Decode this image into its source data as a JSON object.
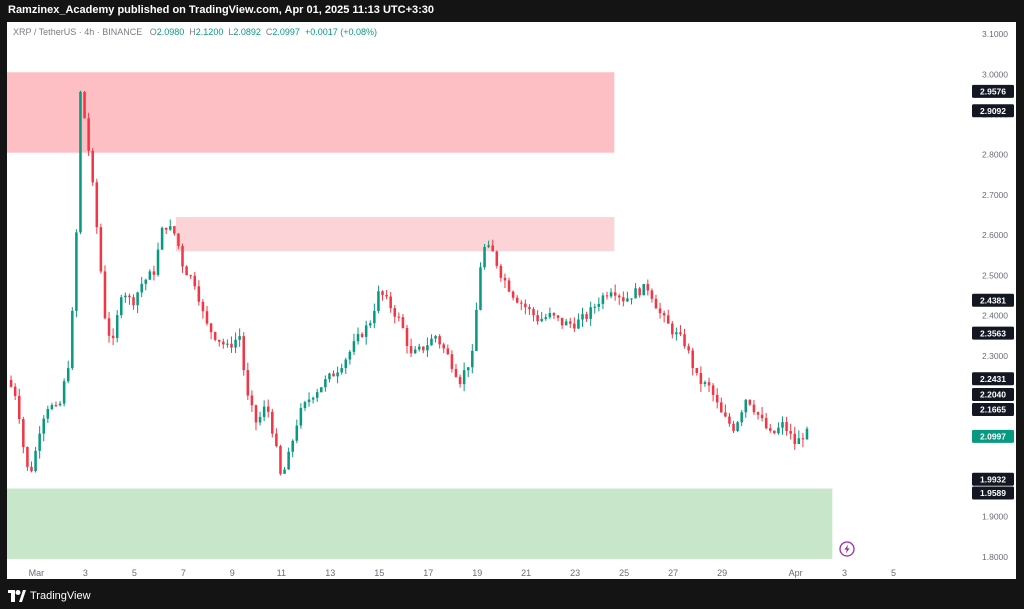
{
  "header": {
    "publisher_line": "Ramzinex_Academy published on TradingView.com, Apr 01, 2025 11:13 UTC+3:30"
  },
  "footer": {
    "brand": "TradingView",
    "logo_icon": "tradingview-logo-icon"
  },
  "legend": {
    "symbol": "XRP / TetherUS · 4h · BINANCE",
    "open_key": "O",
    "open": "2.0980",
    "high_key": "H",
    "high": "2.1200",
    "low_key": "L",
    "low": "2.0892",
    "close_key": "C",
    "close": "2.0997",
    "change": "+0.0017 (+0.08%)"
  },
  "colors": {
    "up": "#089981",
    "down": "#f23645",
    "supply_zone": "#fdbfc3",
    "supply_zone_2": "#fcd3d6",
    "demand_zone": "#c8e6c9",
    "price_label_bg": "#131722",
    "last_price_bg": "#089981"
  },
  "chart_data": {
    "type": "candlestick",
    "symbol": "XRP/USDT",
    "timeframe": "4h",
    "y_ticks": [
      1.8,
      1.9,
      2.0,
      2.1,
      2.2,
      2.3,
      2.4,
      2.5,
      2.6,
      2.7,
      2.8,
      2.9,
      3.0,
      3.1
    ],
    "y_tick_labels": [
      "1.8000",
      "1.9000",
      "2.0000",
      "2.1000",
      "2.2000",
      "2.3000",
      "2.4000",
      "2.5000",
      "2.6000",
      "2.7000",
      "2.8000",
      "2.9000",
      "3.0000",
      "3.1000"
    ],
    "ylim": [
      1.77,
      3.13
    ],
    "x_range_days": [
      -1.2,
      38.0
    ],
    "x_ticks": [
      {
        "day": 0,
        "label": "Mar"
      },
      {
        "day": 2,
        "label": "3"
      },
      {
        "day": 4,
        "label": "5"
      },
      {
        "day": 6,
        "label": "7"
      },
      {
        "day": 8,
        "label": "9"
      },
      {
        "day": 10,
        "label": "11"
      },
      {
        "day": 12,
        "label": "13"
      },
      {
        "day": 14,
        "label": "15"
      },
      {
        "day": 16,
        "label": "17"
      },
      {
        "day": 18,
        "label": "19"
      },
      {
        "day": 20,
        "label": "21"
      },
      {
        "day": 22,
        "label": "23"
      },
      {
        "day": 24,
        "label": "25"
      },
      {
        "day": 26,
        "label": "27"
      },
      {
        "day": 28,
        "label": "29"
      },
      {
        "day": 31,
        "label": "Apr"
      },
      {
        "day": 33,
        "label": "3"
      },
      {
        "day": 35,
        "label": "5"
      }
    ],
    "price_labels": [
      {
        "value": 2.9576,
        "label": "2.9576",
        "kind": "level"
      },
      {
        "value": 2.9092,
        "label": "2.9092",
        "kind": "level"
      },
      {
        "value": 2.4381,
        "label": "2.4381",
        "kind": "level"
      },
      {
        "value": 2.3563,
        "label": "2.3563",
        "kind": "level"
      },
      {
        "value": 2.2431,
        "label": "2.2431",
        "kind": "level"
      },
      {
        "value": 2.204,
        "label": "2.2040",
        "kind": "level"
      },
      {
        "value": 2.1665,
        "label": "2.1665",
        "kind": "level"
      },
      {
        "value": 2.0997,
        "label": "2.0997",
        "kind": "last"
      },
      {
        "value": 1.9932,
        "label": "1.9932",
        "kind": "level"
      },
      {
        "value": 1.9589,
        "label": "1.9589",
        "kind": "level"
      }
    ],
    "zones": [
      {
        "name": "supply-zone-upper",
        "day_start": -1.2,
        "day_end": 23.6,
        "top": 3.005,
        "bottom": 2.805,
        "color_key": "supply_zone"
      },
      {
        "name": "supply-zone-mid",
        "day_start": 5.7,
        "day_end": 23.6,
        "top": 2.645,
        "bottom": 2.56,
        "color_key": "supply_zone_2"
      },
      {
        "name": "demand-zone",
        "day_start": -1.2,
        "day_end": 32.5,
        "top": 1.97,
        "bottom": 1.795,
        "color_key": "demand_zone"
      }
    ],
    "anchors": [
      {
        "day": -1.2,
        "price": 2.24
      },
      {
        "day": -0.8,
        "price": 2.2
      },
      {
        "day": -0.5,
        "price": 2.06
      },
      {
        "day": -0.3,
        "price": 2.0
      },
      {
        "day": -0.1,
        "price": 2.04
      },
      {
        "day": 0.2,
        "price": 2.14
      },
      {
        "day": 0.5,
        "price": 2.18
      },
      {
        "day": 0.9,
        "price": 2.16
      },
      {
        "day": 1.3,
        "price": 2.28
      },
      {
        "day": 1.6,
        "price": 2.5
      },
      {
        "day": 1.75,
        "price": 2.97
      },
      {
        "day": 1.95,
        "price": 2.9
      },
      {
        "day": 2.2,
        "price": 2.78
      },
      {
        "day": 2.5,
        "price": 2.6
      },
      {
        "day": 2.8,
        "price": 2.4
      },
      {
        "day": 3.1,
        "price": 2.32
      },
      {
        "day": 3.5,
        "price": 2.47
      },
      {
        "day": 3.9,
        "price": 2.43
      },
      {
        "day": 4.3,
        "price": 2.48
      },
      {
        "day": 4.8,
        "price": 2.51
      },
      {
        "day": 5.2,
        "price": 2.63
      },
      {
        "day": 5.7,
        "price": 2.6
      },
      {
        "day": 6.0,
        "price": 2.52
      },
      {
        "day": 6.5,
        "price": 2.48
      },
      {
        "day": 6.9,
        "price": 2.38
      },
      {
        "day": 7.3,
        "price": 2.35
      },
      {
        "day": 7.8,
        "price": 2.32
      },
      {
        "day": 8.3,
        "price": 2.35
      },
      {
        "day": 8.6,
        "price": 2.2
      },
      {
        "day": 9.0,
        "price": 2.13
      },
      {
        "day": 9.4,
        "price": 2.18
      },
      {
        "day": 9.7,
        "price": 2.1
      },
      {
        "day": 10.0,
        "price": 1.99
      },
      {
        "day": 10.3,
        "price": 2.05
      },
      {
        "day": 10.7,
        "price": 2.15
      },
      {
        "day": 11.2,
        "price": 2.2
      },
      {
        "day": 11.7,
        "price": 2.23
      },
      {
        "day": 12.2,
        "price": 2.26
      },
      {
        "day": 12.7,
        "price": 2.3
      },
      {
        "day": 13.2,
        "price": 2.35
      },
      {
        "day": 13.6,
        "price": 2.38
      },
      {
        "day": 14.0,
        "price": 2.46
      },
      {
        "day": 14.5,
        "price": 2.42
      },
      {
        "day": 14.9,
        "price": 2.38
      },
      {
        "day": 15.3,
        "price": 2.3
      },
      {
        "day": 15.8,
        "price": 2.32
      },
      {
        "day": 16.3,
        "price": 2.35
      },
      {
        "day": 16.8,
        "price": 2.3
      },
      {
        "day": 17.3,
        "price": 2.24
      },
      {
        "day": 17.8,
        "price": 2.3
      },
      {
        "day": 18.2,
        "price": 2.57
      },
      {
        "day": 18.6,
        "price": 2.56
      },
      {
        "day": 19.0,
        "price": 2.5
      },
      {
        "day": 19.5,
        "price": 2.45
      },
      {
        "day": 20.0,
        "price": 2.42
      },
      {
        "day": 20.5,
        "price": 2.39
      },
      {
        "day": 21.0,
        "price": 2.4
      },
      {
        "day": 21.5,
        "price": 2.38
      },
      {
        "day": 22.0,
        "price": 2.38
      },
      {
        "day": 22.5,
        "price": 2.4
      },
      {
        "day": 23.0,
        "price": 2.44
      },
      {
        "day": 23.5,
        "price": 2.47
      },
      {
        "day": 24.0,
        "price": 2.44
      },
      {
        "day": 24.5,
        "price": 2.46
      },
      {
        "day": 25.0,
        "price": 2.47
      },
      {
        "day": 25.5,
        "price": 2.4
      },
      {
        "day": 26.0,
        "price": 2.36
      },
      {
        "day": 26.5,
        "price": 2.33
      },
      {
        "day": 27.0,
        "price": 2.24
      },
      {
        "day": 27.5,
        "price": 2.22
      },
      {
        "day": 28.0,
        "price": 2.15
      },
      {
        "day": 28.5,
        "price": 2.12
      },
      {
        "day": 29.0,
        "price": 2.2
      },
      {
        "day": 29.5,
        "price": 2.15
      },
      {
        "day": 30.0,
        "price": 2.1
      },
      {
        "day": 30.5,
        "price": 2.13
      },
      {
        "day": 31.0,
        "price": 2.08
      },
      {
        "day": 31.4,
        "price": 2.11
      },
      {
        "day": 31.6,
        "price": 2.1
      }
    ],
    "candles_per_day": 6,
    "last_day": 31.6
  }
}
